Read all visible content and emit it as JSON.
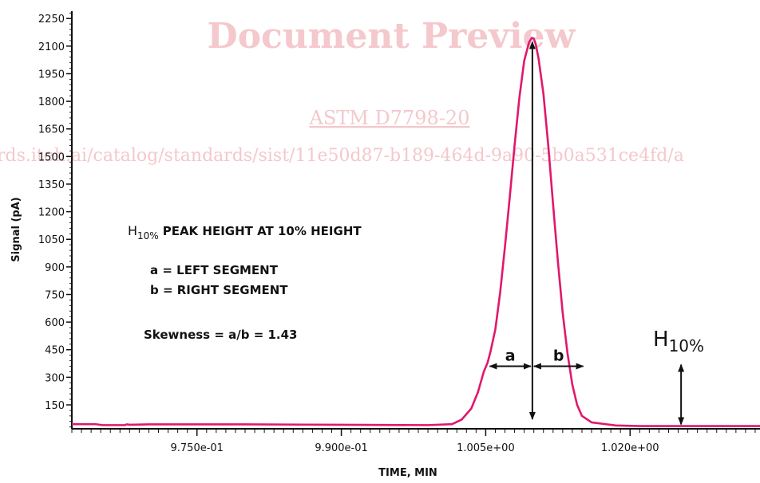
{
  "watermark": {
    "line1": "Document Preview",
    "line2": "ASTM D7798-20",
    "line3": "rds.iteh.ai/catalog/standards/sist/11e50d87-b189-464d-9a90-5b0a531ce4fd/a"
  },
  "colors": {
    "series": "#e0186c",
    "axis": "#111111",
    "watermark": "#f4c8cc"
  },
  "chart_data": {
    "type": "line",
    "xlabel": "TIME, MIN",
    "ylabel": "Signal (pA)",
    "xlim": [
      0.962,
      1.0335
    ],
    "ylim": [
      20,
      2290
    ],
    "x_ticks": [
      0.975,
      0.99,
      1.005,
      1.02
    ],
    "x_tick_labels": [
      "9.750e-01",
      "9.900e-01",
      "1.005e+00",
      "1.020e+00"
    ],
    "y_ticks": [
      150,
      300,
      450,
      600,
      750,
      900,
      1050,
      1200,
      1350,
      1500,
      1650,
      1800,
      1950,
      2100,
      2250
    ],
    "y_tick_labels": [
      "150",
      "300",
      "450",
      "600",
      "750",
      "900",
      "1050",
      "1200",
      "1350",
      "1500",
      "1650",
      "1800",
      "1950",
      "2100",
      "2250"
    ],
    "series": [
      {
        "x": [
          0.962,
          0.9645,
          0.9652,
          0.9675,
          0.9677,
          0.968,
          0.97,
          0.98,
          0.99,
          0.999,
          1.0015,
          1.0025,
          1.0035,
          1.0042,
          1.0048,
          1.0052,
          1.0055,
          1.006,
          1.0065,
          1.007,
          1.0075,
          1.008,
          1.0085,
          1.009,
          1.0095,
          1.0098,
          1.01,
          1.0102,
          1.0105,
          1.011,
          1.0115,
          1.012,
          1.0125,
          1.013,
          1.0135,
          1.014,
          1.0145,
          1.015,
          1.016,
          1.0175,
          1.0185,
          1.021,
          1.03,
          1.0335
        ],
        "y": [
          45,
          45,
          40,
          40,
          44,
          42,
          44,
          44,
          42,
          40,
          45,
          70,
          130,
          220,
          330,
          380,
          440,
          560,
          760,
          1010,
          1280,
          1560,
          1820,
          2020,
          2120,
          2145,
          2140,
          2110,
          2030,
          1840,
          1560,
          1240,
          930,
          650,
          430,
          260,
          150,
          90,
          55,
          45,
          38,
          35,
          35,
          35
        ]
      }
    ],
    "annotations": {
      "h10_legend": "H",
      "h10_legend_sub": "10%",
      "h10_legend_rest": "PEAK HEIGHT AT 10% HEIGHT",
      "seg_a": "a = LEFT SEGMENT",
      "seg_b": "b = RIGHT SEGMENT",
      "skewness": "Skewness = a/b = 1.43",
      "label_a": "a",
      "label_b": "b",
      "h10_marker": "H",
      "h10_marker_sub": "10%",
      "peak_x": 1.00985,
      "peak_y": 2140,
      "left_x": 1.00525,
      "right_x": 1.0153,
      "h10_y": 360,
      "h10_marker_x": 1.0253,
      "h10_marker_top": 360,
      "h10_marker_bottom": 35
    }
  }
}
